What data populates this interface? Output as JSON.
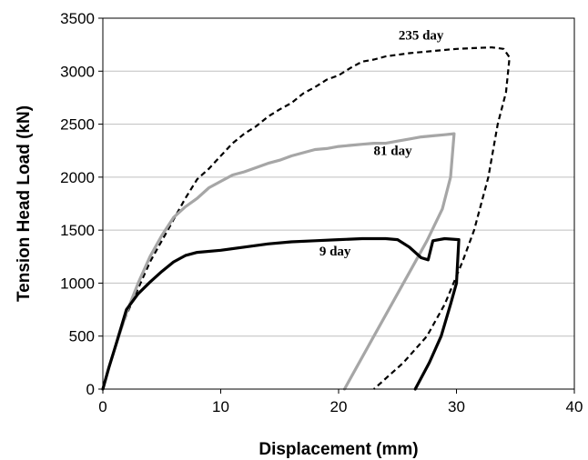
{
  "chart_data": {
    "type": "line",
    "xlabel": "Displacement (mm)",
    "ylabel": "Tension Head Load (kN)",
    "xlim": [
      0,
      40
    ],
    "ylim": [
      0,
      3500
    ],
    "xticks": [
      0,
      10,
      20,
      30,
      40
    ],
    "yticks": [
      0,
      500,
      1000,
      1500,
      2000,
      2500,
      3000,
      3500
    ],
    "grid": "horizontal",
    "legend": "none",
    "series": [
      {
        "name": "235 day",
        "color": "#000000",
        "style": "dashed",
        "points": [
          [
            0,
            0
          ],
          [
            0.5,
            200
          ],
          [
            1.2,
            450
          ],
          [
            2,
            700
          ],
          [
            3,
            950
          ],
          [
            4,
            1200
          ],
          [
            5,
            1400
          ],
          [
            6,
            1600
          ],
          [
            7,
            1800
          ],
          [
            8,
            1980
          ],
          [
            9,
            2080
          ],
          [
            10,
            2200
          ],
          [
            11,
            2320
          ],
          [
            12,
            2410
          ],
          [
            13,
            2480
          ],
          [
            14,
            2570
          ],
          [
            15,
            2640
          ],
          [
            16,
            2700
          ],
          [
            17,
            2790
          ],
          [
            18,
            2850
          ],
          [
            19,
            2920
          ],
          [
            20,
            2960
          ],
          [
            21,
            3030
          ],
          [
            22,
            3090
          ],
          [
            23,
            3110
          ],
          [
            24,
            3140
          ],
          [
            26,
            3170
          ],
          [
            28,
            3190
          ],
          [
            30,
            3210
          ],
          [
            32,
            3220
          ],
          [
            33,
            3225
          ],
          [
            34,
            3210
          ],
          [
            34.5,
            3130
          ],
          [
            34.2,
            2800
          ],
          [
            33.5,
            2500
          ],
          [
            32.7,
            2000
          ],
          [
            31.5,
            1500
          ],
          [
            30.5,
            1200
          ],
          [
            29,
            800
          ],
          [
            27.5,
            500
          ],
          [
            25.5,
            250
          ],
          [
            23,
            0
          ]
        ]
      },
      {
        "name": "81 day",
        "color": "#a6a6a6",
        "style": "solid",
        "points": [
          [
            0,
            0
          ],
          [
            0.5,
            200
          ],
          [
            1,
            380
          ],
          [
            2,
            720
          ],
          [
            3,
            1000
          ],
          [
            4,
            1250
          ],
          [
            5,
            1450
          ],
          [
            6,
            1620
          ],
          [
            7,
            1720
          ],
          [
            8,
            1800
          ],
          [
            9,
            1900
          ],
          [
            10,
            1960
          ],
          [
            11,
            2020
          ],
          [
            12,
            2050
          ],
          [
            13,
            2090
          ],
          [
            14,
            2130
          ],
          [
            15,
            2160
          ],
          [
            16,
            2200
          ],
          [
            17,
            2230
          ],
          [
            18,
            2260
          ],
          [
            19,
            2270
          ],
          [
            20,
            2290
          ],
          [
            21,
            2300
          ],
          [
            22,
            2310
          ],
          [
            23,
            2320
          ],
          [
            24,
            2320
          ],
          [
            25,
            2340
          ],
          [
            26,
            2360
          ],
          [
            27,
            2380
          ],
          [
            28,
            2390
          ],
          [
            29,
            2400
          ],
          [
            29.8,
            2410
          ],
          [
            29.5,
            2000
          ],
          [
            28.8,
            1700
          ],
          [
            27.5,
            1400
          ],
          [
            26,
            1100
          ],
          [
            24.5,
            800
          ],
          [
            23,
            500
          ],
          [
            21.5,
            200
          ],
          [
            20.5,
            0
          ]
        ]
      },
      {
        "name": "9 day",
        "color": "#000000",
        "style": "solid",
        "points": [
          [
            0,
            0
          ],
          [
            0.5,
            200
          ],
          [
            1,
            380
          ],
          [
            2,
            750
          ],
          [
            3,
            900
          ],
          [
            4,
            1010
          ],
          [
            5,
            1110
          ],
          [
            6,
            1200
          ],
          [
            7,
            1260
          ],
          [
            8,
            1290
          ],
          [
            10,
            1310
          ],
          [
            12,
            1340
          ],
          [
            14,
            1370
          ],
          [
            16,
            1390
          ],
          [
            18,
            1400
          ],
          [
            20,
            1410
          ],
          [
            22,
            1420
          ],
          [
            24,
            1420
          ],
          [
            25,
            1410
          ],
          [
            26,
            1340
          ],
          [
            27,
            1240
          ],
          [
            27.6,
            1220
          ],
          [
            28,
            1400
          ],
          [
            29,
            1420
          ],
          [
            30.2,
            1410
          ],
          [
            30,
            1000
          ],
          [
            29.5,
            800
          ],
          [
            28.7,
            500
          ],
          [
            27.7,
            250
          ],
          [
            26.5,
            0
          ]
        ]
      }
    ],
    "annotations": [
      {
        "text": "235 day",
        "x": 27.0,
        "y": 3300
      },
      {
        "text": "81 day",
        "x": 24.6,
        "y": 2210
      },
      {
        "text": "9 day",
        "x": 19.7,
        "y": 1260
      }
    ]
  }
}
